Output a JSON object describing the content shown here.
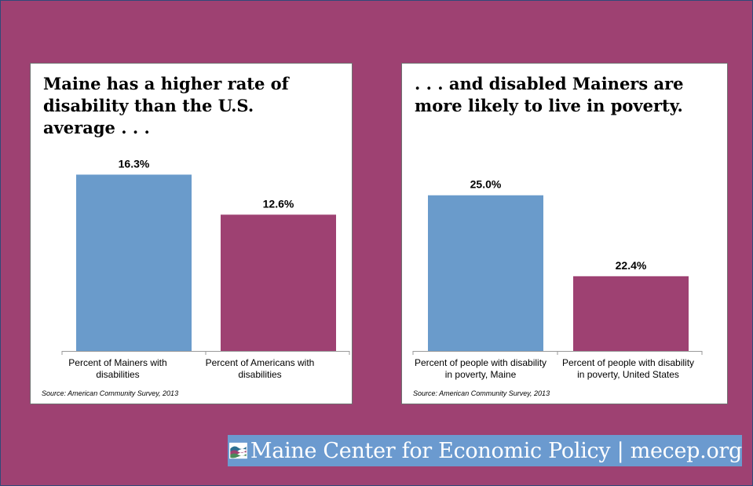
{
  "chart_data": [
    {
      "type": "bar",
      "title": "Maine has a higher rate of disability than the U.S. average . . .",
      "categories": [
        "Percent of Mainers with disabilities",
        "Percent of Americans with disabilities"
      ],
      "values": [
        16.3,
        12.6
      ],
      "value_labels": [
        "16.3%",
        "12.6%"
      ],
      "colors": [
        "#6a9bcb",
        "#9e4172"
      ],
      "ylim": [
        0,
        18
      ],
      "source": "Source: American Community Survey, 2013"
    },
    {
      "type": "bar",
      "title": ". . . and disabled Mainers are more likely to live in poverty.",
      "categories": [
        "Percent of people with disability in poverty, Maine",
        "Percent of people with disability in poverty, United States"
      ],
      "values": [
        25.0,
        22.4
      ],
      "value_labels": [
        "25.0%",
        "22.4%"
      ],
      "colors": [
        "#6a9bcb",
        "#9e4172"
      ],
      "ylim": [
        20,
        25.8
      ],
      "source": "Source: American Community Survey, 2013"
    }
  ],
  "branding": {
    "text": "Maine Center for Economic Policy  |  mecep.org",
    "background": "#6b9acf",
    "logo_icon": "mecep-waves-icon"
  }
}
